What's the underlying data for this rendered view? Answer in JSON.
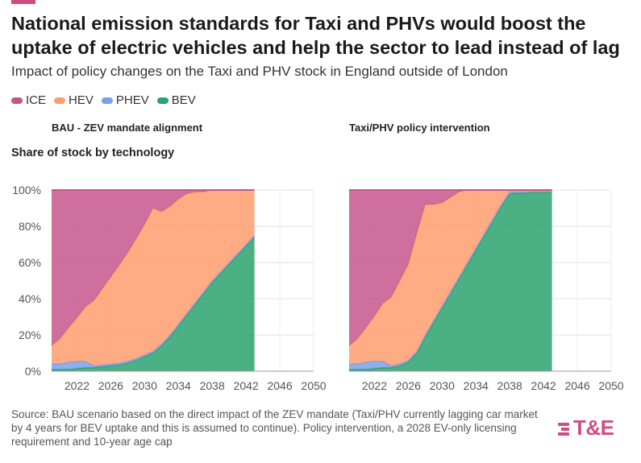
{
  "header": {
    "title": "National emission standards for Taxi and PHVs would boost the uptake of electric vehicles and help the sector to lead instead of lag",
    "subtitle": "Impact of policy changes on the Taxi and PHV stock in England outside of London"
  },
  "legend": [
    {
      "label": "ICE",
      "color": "#c5568d"
    },
    {
      "label": "HEV",
      "color": "#ff9d6f"
    },
    {
      "label": "PHEV",
      "color": "#7aa1e8"
    },
    {
      "label": "BEV",
      "color": "#2ba36f"
    }
  ],
  "y_axis_title": "Share of stock by technology",
  "source": "Source: BAU scenario based on the direct impact of the ZEV mandate (Taxi/PHV currently lagging car market by 4 years for BEV uptake and this is assumed to continue). Policy intervention, a 2028 EV-only licensing requirement and 10-year age cap",
  "logo_text": "T&E",
  "chart_data": [
    {
      "type": "area",
      "stacked": true,
      "title": "BAU - ZEV mandate alignment",
      "ylabel": "Share of stock by technology",
      "xlim": [
        2019,
        2050
      ],
      "ylim": [
        0,
        100
      ],
      "xticks": [
        "2022",
        "2026",
        "2030",
        "2034",
        "2038",
        "2042",
        "2046",
        "2050"
      ],
      "yticks": [
        "0%",
        "20%",
        "40%",
        "60%",
        "80%",
        "100%"
      ],
      "grid": true,
      "x": [
        2019,
        2020,
        2021,
        2022,
        2023,
        2024,
        2025,
        2026,
        2027,
        2028,
        2029,
        2030,
        2031,
        2032,
        2033,
        2034,
        2035,
        2036,
        2037,
        2038,
        2039,
        2040,
        2041,
        2042,
        2043
      ],
      "series": [
        {
          "name": "BEV",
          "values": [
            1,
            1,
            1,
            1.5,
            2,
            2,
            2.5,
            3,
            3.5,
            4.5,
            6,
            8,
            10,
            14,
            19,
            25,
            31,
            37,
            43,
            49,
            54,
            59,
            64,
            69,
            74
          ]
        },
        {
          "name": "PHEV",
          "values": [
            3,
            3,
            4,
            4,
            3.5,
            1,
            1,
            1,
            1,
            1,
            1,
            1,
            1,
            1,
            1,
            1,
            1,
            1,
            1,
            1,
            1,
            1,
            1,
            1,
            1
          ]
        },
        {
          "name": "HEV",
          "values": [
            10,
            14,
            19,
            24,
            30,
            36,
            42,
            48,
            54,
            60,
            66,
            72,
            79,
            73,
            71,
            69,
            66,
            61,
            55,
            50,
            45,
            40,
            35,
            30,
            25
          ]
        },
        {
          "name": "ICE",
          "values": [
            86,
            82,
            76,
            70.5,
            64.5,
            61,
            54.5,
            48,
            41.5,
            34.5,
            27,
            19,
            10,
            12,
            9,
            5,
            2,
            1,
            1,
            0,
            0,
            0,
            0,
            0,
            0
          ]
        }
      ]
    },
    {
      "type": "area",
      "stacked": true,
      "title": "Taxi/PHV policy intervention",
      "ylabel": "",
      "xlim": [
        2019,
        2050
      ],
      "ylim": [
        0,
        100
      ],
      "xticks": [
        "2022",
        "2026",
        "2030",
        "2034",
        "2038",
        "2042",
        "2046",
        "2050"
      ],
      "yticks": [],
      "grid": true,
      "x": [
        2019,
        2020,
        2021,
        2022,
        2023,
        2024,
        2025,
        2026,
        2027,
        2028,
        2029,
        2030,
        2031,
        2032,
        2033,
        2034,
        2035,
        2036,
        2037,
        2038,
        2039,
        2040,
        2041,
        2042,
        2043
      ],
      "series": [
        {
          "name": "BEV",
          "values": [
            1,
            1,
            1,
            1.5,
            2,
            2,
            3,
            5,
            10,
            19,
            27,
            35,
            43,
            51,
            59,
            67,
            75,
            83,
            91,
            98,
            98.5,
            98.5,
            99,
            99,
            99
          ]
        },
        {
          "name": "PHEV",
          "values": [
            3,
            3,
            4,
            4,
            3.5,
            1,
            1,
            1,
            1,
            1,
            1,
            1,
            1,
            1,
            1,
            1,
            1,
            1,
            1,
            1,
            0.5,
            0.5,
            0.5,
            0.5,
            0.5
          ]
        },
        {
          "name": "HEV",
          "values": [
            10,
            14,
            19,
            25,
            32,
            38,
            46,
            53,
            65,
            72,
            64,
            57,
            52,
            47,
            40,
            32,
            24,
            16,
            8,
            1,
            0.5,
            0.5,
            0,
            0,
            0
          ]
        },
        {
          "name": "ICE",
          "values": [
            86,
            82,
            76,
            69.5,
            62.5,
            59,
            50,
            41,
            24,
            8,
            8,
            7,
            4,
            1,
            0,
            0,
            0,
            0,
            0,
            0,
            0.5,
            0.5,
            0.5,
            0.5,
            0.5
          ]
        }
      ]
    }
  ]
}
